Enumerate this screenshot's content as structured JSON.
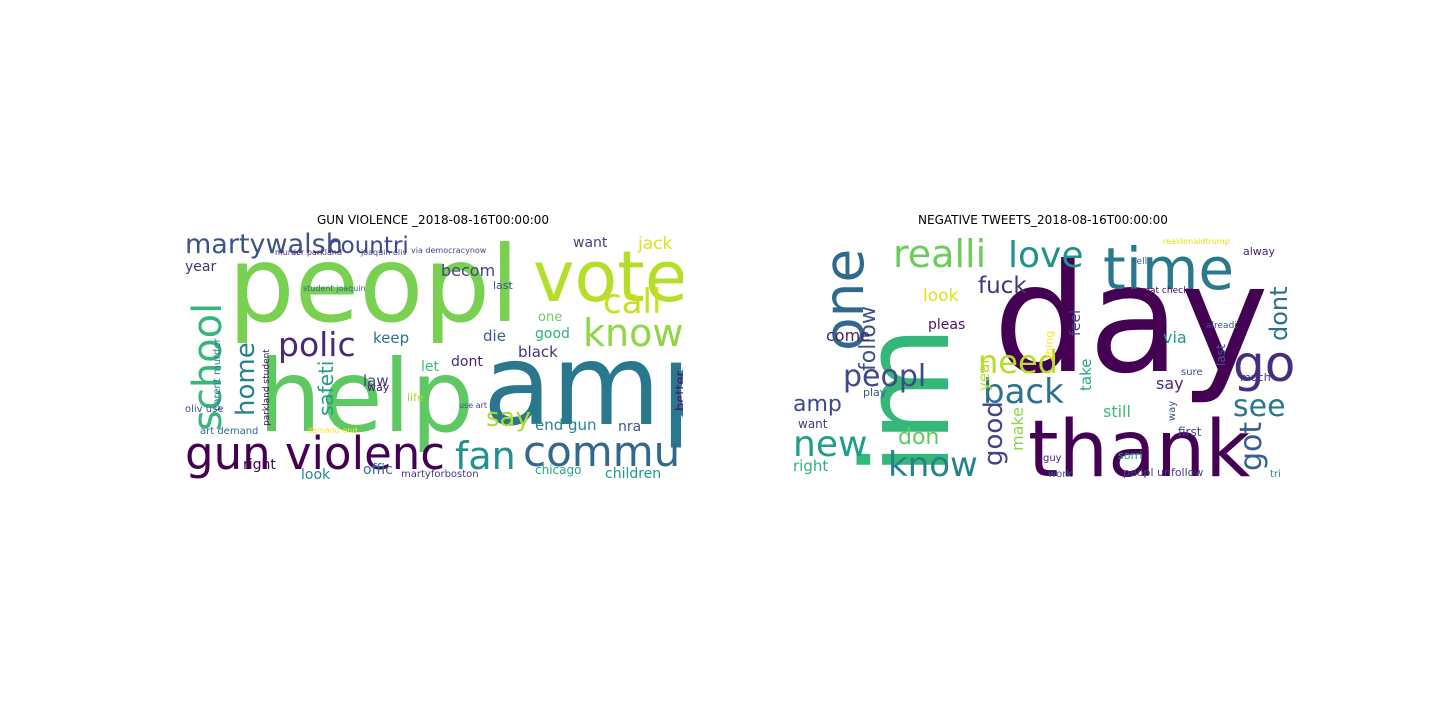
{
  "panels": [
    {
      "title": "GUN VIOLENCE _2018-08-16T00:00:00",
      "words": [
        {
          "text": "peopl",
          "color": "#7ad151"
        },
        {
          "text": "help",
          "color": "#5ec962"
        },
        {
          "text": "amp",
          "color": "#2a788e"
        },
        {
          "text": "vote",
          "color": "#b5de2b"
        },
        {
          "text": "gun violenc",
          "color": "#440154"
        },
        {
          "text": "commun",
          "color": "#31688e"
        },
        {
          "text": "fan",
          "color": "#21918c"
        },
        {
          "text": "school",
          "color": "#35b779"
        },
        {
          "text": "know",
          "color": "#8fd744"
        },
        {
          "text": "call",
          "color": "#c8e020"
        },
        {
          "text": "martywalsh",
          "color": "#3b528b"
        },
        {
          "text": "countri",
          "color": "#3e4989"
        },
        {
          "text": "polic",
          "color": "#482878"
        },
        {
          "text": "home",
          "color": "#26828e"
        },
        {
          "text": "say",
          "color": "#addc30"
        },
        {
          "text": "safeti",
          "color": "#1f9e89"
        },
        {
          "text": "jack",
          "color": "#dde318"
        },
        {
          "text": "year",
          "color": "#46327e"
        },
        {
          "text": "becom",
          "color": "#414487"
        },
        {
          "text": "want",
          "color": "#433e85"
        },
        {
          "text": "one",
          "color": "#6ccd5a"
        },
        {
          "text": "good",
          "color": "#2db27d"
        },
        {
          "text": "black",
          "color": "#472d7b"
        },
        {
          "text": "die",
          "color": "#355f8d"
        },
        {
          "text": "keep",
          "color": "#2c728e"
        },
        {
          "text": "law",
          "color": "#443a83"
        },
        {
          "text": "let",
          "color": "#3fbc73"
        },
        {
          "text": "dont",
          "color": "#481f70"
        },
        {
          "text": "end gun",
          "color": "#25848e"
        },
        {
          "text": "nra",
          "color": "#38598c"
        },
        {
          "text": "better",
          "color": "#4e0c6b"
        },
        {
          "text": "children",
          "color": "#1e9b8a"
        },
        {
          "text": "chicago",
          "color": "#22a884"
        },
        {
          "text": "offic",
          "color": "#2e6f8e"
        },
        {
          "text": "look",
          "color": "#23898e"
        },
        {
          "text": "right",
          "color": "#440154"
        },
        {
          "text": "martyforboston",
          "color": "#453781"
        },
        {
          "text": "life",
          "color": "#addc30"
        },
        {
          "text": "way",
          "color": "#481467"
        },
        {
          "text": "last",
          "color": "#3a548c"
        },
        {
          "text": "parent murder",
          "color": "#2a788e"
        },
        {
          "text": "art demand",
          "color": "#31688e"
        },
        {
          "text": "oliv use",
          "color": "#3b528b"
        },
        {
          "text": "parkland student",
          "color": "#46085c"
        },
        {
          "text": "murder parkland",
          "color": "#482677"
        },
        {
          "text": "joaquin oliv",
          "color": "#404688"
        },
        {
          "text": "student joaquin",
          "color": "#33638d"
        },
        {
          "text": "use art",
          "color": "#3d4e8a"
        },
        {
          "text": "demand end",
          "color": "#fde725"
        },
        {
          "text": "via democracynow",
          "color": "#3e4989"
        }
      ]
    },
    {
      "title": "NEGATIVE TWEETS_2018-08-16T00:00:00",
      "words": [
        {
          "text": "day",
          "color": "#440154"
        },
        {
          "text": "im",
          "color": "#35b779"
        },
        {
          "text": "thank",
          "color": "#440154"
        },
        {
          "text": "one",
          "color": "#31688e"
        },
        {
          "text": "time",
          "color": "#2a788e"
        },
        {
          "text": "realli",
          "color": "#6ccd5a"
        },
        {
          "text": "love",
          "color": "#21918c"
        },
        {
          "text": "go",
          "color": "#472d7b"
        },
        {
          "text": "new",
          "color": "#1f9e89"
        },
        {
          "text": "know",
          "color": "#26828e"
        },
        {
          "text": "back",
          "color": "#2c728e"
        },
        {
          "text": "peopl",
          "color": "#3e4989"
        },
        {
          "text": "need",
          "color": "#b5de2b"
        },
        {
          "text": "see",
          "color": "#2a788e"
        },
        {
          "text": "got",
          "color": "#355f8d"
        },
        {
          "text": "fuck",
          "color": "#46327e"
        },
        {
          "text": "dont",
          "color": "#2e6f8e"
        },
        {
          "text": "good",
          "color": "#414487"
        },
        {
          "text": "follow",
          "color": "#3b528b"
        },
        {
          "text": "amp",
          "color": "#3e4989"
        },
        {
          "text": "don",
          "color": "#5ec962"
        },
        {
          "text": "come",
          "color": "#481f70"
        },
        {
          "text": "look",
          "color": "#dde318"
        },
        {
          "text": "say",
          "color": "#482878"
        },
        {
          "text": "via",
          "color": "#1e9b8a"
        },
        {
          "text": "still",
          "color": "#3fbc73"
        },
        {
          "text": "year",
          "color": "#b5de2b"
        },
        {
          "text": "right",
          "color": "#2db27d"
        },
        {
          "text": "want",
          "color": "#443a83"
        },
        {
          "text": "make",
          "color": "#8fd744"
        },
        {
          "text": "take",
          "color": "#22a884"
        },
        {
          "text": "feel",
          "color": "#433e85"
        },
        {
          "text": "pleas",
          "color": "#481467"
        },
        {
          "text": "play",
          "color": "#3a548c"
        },
        {
          "text": "last",
          "color": "#38598c"
        },
        {
          "text": "much",
          "color": "#453781"
        },
        {
          "text": "first",
          "color": "#404688"
        },
        {
          "text": "peopl unfollow",
          "color": "#433e85"
        },
        {
          "text": "sorri",
          "color": "#1f9e89"
        },
        {
          "text": "work",
          "color": "#33638d"
        },
        {
          "text": "guy",
          "color": "#482677"
        },
        {
          "text": "thing",
          "color": "#fde725"
        },
        {
          "text": "alway",
          "color": "#481f70"
        },
        {
          "text": "tri",
          "color": "#23898e"
        },
        {
          "text": "automat check",
          "color": "#46085c"
        },
        {
          "text": "alreadi",
          "color": "#3d4e8a"
        },
        {
          "text": "sure",
          "color": "#3e4989"
        },
        {
          "text": "way",
          "color": "#3b528b"
        },
        {
          "text": "realdonaldtrump",
          "color": "#dde318"
        },
        {
          "text": "tell",
          "color": "#355f8d"
        }
      ]
    }
  ]
}
